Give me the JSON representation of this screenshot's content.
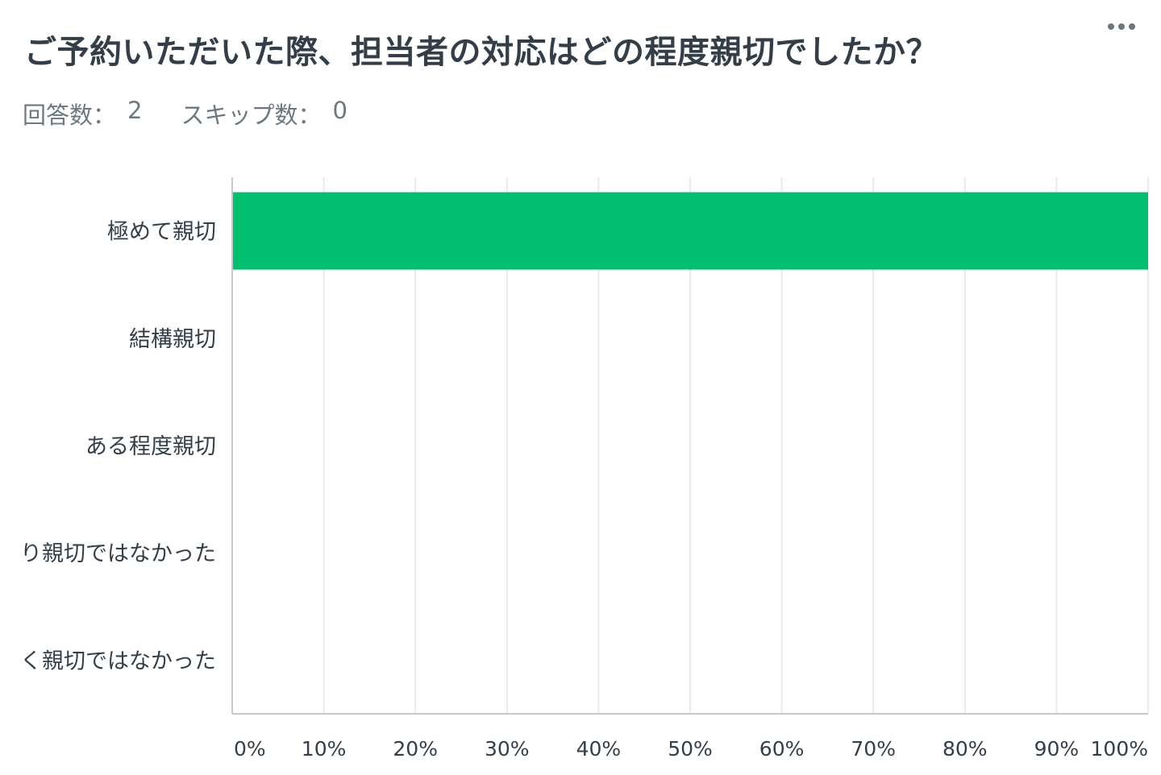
{
  "question": {
    "title": "ご予約いただいた際、担当者の対応はどの程度親切でしたか？",
    "menu_icon": "more-horizontal-icon"
  },
  "stats": {
    "answered_label": "回答数：",
    "answered_value": "2",
    "skipped_label": "スキップ数：",
    "skipped_value": "0"
  },
  "colors": {
    "bar": "#00bf6f",
    "grid": "#e9eaec",
    "axis": "#c5c9cc",
    "text": "#333e48",
    "muted": "#6b787f"
  },
  "chart_data": {
    "type": "bar",
    "orientation": "horizontal",
    "categories": [
      "極めて親切",
      "結構親切",
      "ある程度親切",
      "り親切ではなかった",
      "く親切ではなかった"
    ],
    "values": [
      100,
      0,
      0,
      0,
      0
    ],
    "xlim": [
      0,
      100
    ],
    "x_ticks": [
      "0%",
      "10%",
      "20%",
      "30%",
      "40%",
      "50%",
      "60%",
      "70%",
      "80%",
      "90%",
      "100%"
    ],
    "grid": true,
    "legend": "none"
  }
}
